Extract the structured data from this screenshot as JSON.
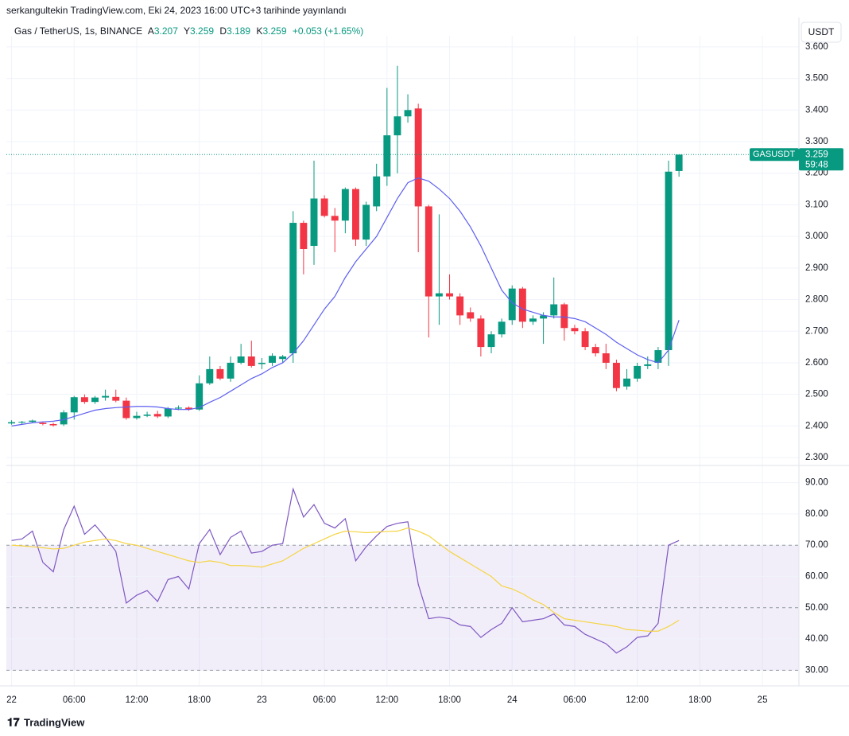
{
  "header": {
    "published": "serkangultekin TradingView.com, Eki 24, 2023 16:00 UTC+3 tarihinde yayınlandı",
    "symbol": "Gas / TetherUS, 1s, BINANCE",
    "ohlc_labels": [
      "A",
      "Y",
      "D",
      "K"
    ],
    "change": "+0.053 (+1.65%)",
    "currency": "USDT"
  },
  "chart_data": [
    {
      "type": "candlestick",
      "x": [
        0,
        1,
        2,
        3,
        4,
        5,
        6,
        7,
        8,
        9,
        10,
        11,
        12,
        13,
        14,
        15,
        16,
        17,
        18,
        19,
        20,
        21,
        22,
        23,
        24,
        25,
        26,
        27,
        28,
        29,
        30,
        31,
        32,
        33,
        34,
        35,
        36,
        37,
        38,
        39,
        40,
        41,
        42,
        43,
        44,
        45,
        46,
        47,
        48,
        49,
        50,
        51,
        52,
        53,
        54,
        55,
        56,
        57,
        58,
        59,
        60,
        61,
        62,
        63,
        64
      ],
      "open": [
        2.408,
        2.412,
        2.413,
        2.41,
        2.406,
        2.405,
        2.443,
        2.491,
        2.476,
        2.49,
        2.492,
        2.48,
        2.425,
        2.432,
        2.438,
        2.43,
        2.455,
        2.458,
        2.452,
        2.535,
        2.58,
        2.55,
        2.6,
        2.62,
        2.596,
        2.6,
        2.612,
        2.63,
        3.043,
        2.97,
        3.12,
        3.065,
        3.05,
        3.15,
        2.99,
        3.095,
        3.19,
        3.32,
        3.38,
        3.405,
        3.095,
        2.81,
        2.82,
        2.81,
        2.76,
        2.74,
        2.65,
        2.69,
        2.735,
        2.835,
        2.73,
        2.74,
        2.75,
        2.785,
        2.71,
        2.7,
        2.65,
        2.63,
        2.6,
        2.525,
        2.55,
        2.59,
        2.6,
        2.64,
        3.207
      ],
      "high": [
        2.418,
        2.416,
        2.42,
        2.414,
        2.41,
        2.45,
        2.495,
        2.5,
        2.495,
        2.515,
        2.515,
        2.49,
        2.445,
        2.445,
        2.448,
        2.46,
        2.465,
        2.462,
        2.56,
        2.62,
        2.59,
        2.62,
        2.66,
        2.67,
        2.615,
        2.63,
        2.625,
        3.08,
        3.05,
        3.24,
        3.13,
        3.09,
        3.155,
        3.155,
        3.11,
        3.23,
        3.47,
        3.54,
        3.45,
        3.42,
        3.1,
        3.07,
        2.88,
        2.82,
        2.775,
        2.75,
        2.7,
        2.74,
        2.845,
        2.84,
        2.75,
        2.76,
        2.87,
        2.79,
        2.72,
        2.71,
        2.66,
        2.66,
        2.61,
        2.58,
        2.6,
        2.62,
        2.65,
        3.24,
        3.259
      ],
      "low": [
        2.404,
        2.405,
        2.41,
        2.402,
        2.398,
        2.4,
        2.42,
        2.47,
        2.47,
        2.48,
        2.475,
        2.42,
        2.42,
        2.428,
        2.425,
        2.425,
        2.45,
        2.448,
        2.448,
        2.53,
        2.545,
        2.54,
        2.595,
        2.585,
        2.58,
        2.59,
        2.6,
        2.6,
        2.88,
        2.91,
        3.06,
        2.95,
        3.01,
        2.97,
        2.97,
        3.08,
        3.16,
        3.2,
        3.36,
        2.95,
        2.68,
        2.72,
        2.8,
        2.72,
        2.73,
        2.62,
        2.63,
        2.68,
        2.72,
        2.71,
        2.72,
        2.66,
        2.74,
        2.67,
        2.69,
        2.64,
        2.62,
        2.58,
        2.51,
        2.515,
        2.54,
        2.58,
        2.58,
        2.59,
        3.189
      ],
      "close": [
        2.412,
        2.413,
        2.417,
        2.406,
        2.402,
        2.443,
        2.491,
        2.476,
        2.49,
        2.495,
        2.48,
        2.425,
        2.432,
        2.436,
        2.43,
        2.455,
        2.458,
        2.452,
        2.535,
        2.58,
        2.55,
        2.6,
        2.62,
        2.59,
        2.6,
        2.622,
        2.62,
        3.043,
        2.96,
        3.12,
        3.065,
        3.05,
        3.15,
        2.99,
        3.1,
        3.19,
        3.32,
        3.38,
        3.4,
        3.095,
        2.81,
        2.82,
        2.81,
        2.75,
        2.74,
        2.65,
        2.69,
        2.73,
        2.835,
        2.73,
        2.74,
        2.75,
        2.785,
        2.71,
        2.7,
        2.65,
        2.63,
        2.6,
        2.52,
        2.55,
        2.59,
        2.595,
        2.64,
        3.205,
        3.259
      ],
      "up_color": "#089981",
      "down_color": "#f23645",
      "ma": {
        "color": "#5d5ff0",
        "values": [
          2.4,
          2.405,
          2.41,
          2.413,
          2.415,
          2.42,
          2.43,
          2.44,
          2.45,
          2.455,
          2.458,
          2.46,
          2.462,
          2.462,
          2.46,
          2.455,
          2.452,
          2.452,
          2.458,
          2.475,
          2.49,
          2.51,
          2.53,
          2.55,
          2.565,
          2.585,
          2.6,
          2.63,
          2.67,
          2.72,
          2.77,
          2.81,
          2.87,
          2.92,
          2.96,
          3.0,
          3.06,
          3.12,
          3.17,
          3.185,
          3.175,
          3.15,
          3.12,
          3.08,
          3.03,
          2.97,
          2.9,
          2.83,
          2.79,
          2.77,
          2.76,
          2.75,
          2.745,
          2.745,
          2.74,
          2.73,
          2.71,
          2.69,
          2.665,
          2.645,
          2.625,
          2.61,
          2.6,
          2.64,
          2.735
        ]
      },
      "price_line": {
        "label": "GASUSDT",
        "countdown": "59:48"
      },
      "xlim": [
        -0.5,
        75.5
      ],
      "xticks": [
        {
          "value": 0,
          "label": "22"
        },
        {
          "value": 6,
          "label": "06:00"
        },
        {
          "value": 12,
          "label": "12:00"
        },
        {
          "value": 18,
          "label": "18:00"
        },
        {
          "value": 24,
          "label": "23"
        },
        {
          "value": 30,
          "label": "06:00"
        },
        {
          "value": 36,
          "label": "12:00"
        },
        {
          "value": 42,
          "label": "18:00"
        },
        {
          "value": 48,
          "label": "24"
        },
        {
          "value": 54,
          "label": "06:00"
        },
        {
          "value": 60,
          "label": "12:00"
        },
        {
          "value": 66,
          "label": "18:00"
        },
        {
          "value": 72,
          "label": "25"
        }
      ],
      "ylim": [
        2.28,
        3.635
      ],
      "yticks": [
        {
          "value": 2.3,
          "label": "2.300"
        },
        {
          "value": 2.4,
          "label": "2.400"
        },
        {
          "value": 2.5,
          "label": "2.500"
        },
        {
          "value": 2.6,
          "label": "2.600"
        },
        {
          "value": 2.7,
          "label": "2.700"
        },
        {
          "value": 2.8,
          "label": "2.800"
        },
        {
          "value": 2.9,
          "label": "2.900"
        },
        {
          "value": 3.0,
          "label": "3.000"
        },
        {
          "value": 3.1,
          "label": "3.100"
        },
        {
          "value": 3.2,
          "label": "3.200"
        },
        {
          "value": 3.3,
          "label": "3.300"
        },
        {
          "value": 3.4,
          "label": "3.400"
        },
        {
          "value": 3.5,
          "label": "3.500"
        },
        {
          "value": 3.6,
          "label": "3.600"
        }
      ],
      "grid": true
    },
    {
      "type": "line",
      "series": [
        {
          "color": "#7e57c2",
          "values": [
            71.5,
            72,
            74.5,
            64.5,
            61.5,
            75,
            82.5,
            73.5,
            76.5,
            72.5,
            68,
            51.5,
            54,
            55.5,
            52,
            59,
            60,
            56,
            70.5,
            75,
            67,
            72.5,
            74.5,
            67.5,
            68,
            70,
            70.5,
            88,
            79,
            83,
            77,
            75.5,
            78.5,
            65,
            69.5,
            73,
            76,
            77,
            77.5,
            57.5,
            46.5,
            47,
            46.5,
            44.5,
            44,
            40.5,
            43,
            45,
            50,
            45.5,
            46,
            46.5,
            48,
            44.5,
            44,
            41.5,
            40,
            38.5,
            35.5,
            37.5,
            40.5,
            41,
            45,
            70,
            71.5
          ]
        },
        {
          "color": "#f5d442",
          "values": [
            70,
            69.8,
            69.5,
            69.2,
            68.8,
            69,
            70,
            71,
            71.5,
            72,
            71.5,
            70.5,
            70,
            69,
            68,
            67,
            66,
            65,
            64.5,
            65,
            64.5,
            63.5,
            63.5,
            63.3,
            63,
            64,
            65,
            67,
            69,
            70.5,
            72,
            73.5,
            74.5,
            74.3,
            74,
            74.2,
            74.4,
            74.5,
            75.5,
            74.5,
            73,
            70.5,
            68,
            66,
            64,
            62,
            60,
            57,
            56,
            54.5,
            52.5,
            51,
            48.5,
            46.5,
            46,
            45.5,
            45,
            44.5,
            44,
            43,
            42.8,
            42.5,
            42.5,
            44,
            46
          ]
        }
      ],
      "band": [
        30,
        70
      ],
      "levels": [
        30,
        50,
        70
      ],
      "ylim": [
        25,
        95
      ],
      "yticks": [
        {
          "value": 30,
          "label": "30.00"
        },
        {
          "value": 40,
          "label": "40.00"
        },
        {
          "value": 50,
          "label": "50.00"
        },
        {
          "value": 60,
          "label": "60.00"
        },
        {
          "value": 70,
          "label": "70.00"
        },
        {
          "value": 80,
          "label": "80.00"
        },
        {
          "value": 90,
          "label": "90.00"
        }
      ],
      "grid": true
    }
  ],
  "footer": {
    "brand": "TradingView"
  }
}
